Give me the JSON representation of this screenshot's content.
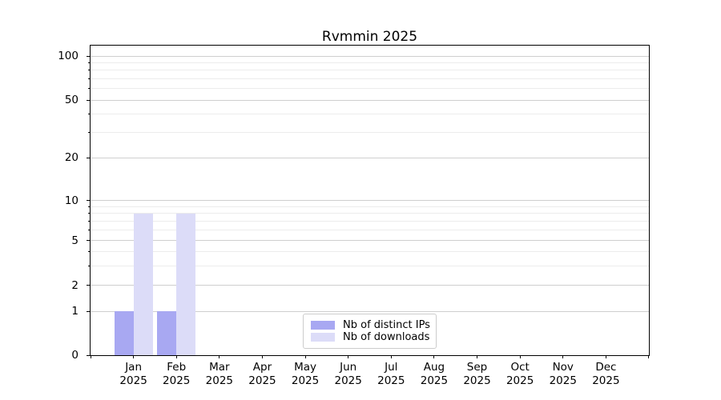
{
  "figure": {
    "background": "#ffffff"
  },
  "chart_data": {
    "type": "bar",
    "title": "Rvmmin 2025",
    "categories": [
      "Jan 2025",
      "Feb 2025",
      "Mar 2025",
      "Apr 2025",
      "May 2025",
      "Jun 2025",
      "Jul 2025",
      "Aug 2025",
      "Sep 2025",
      "Oct 2025",
      "Nov 2025",
      "Dec 2025"
    ],
    "series": [
      {
        "name": "Nb of distinct IPs",
        "color": "#a8a8f2",
        "values": [
          1,
          1,
          0,
          0,
          0,
          0,
          0,
          0,
          0,
          0,
          0,
          0
        ]
      },
      {
        "name": "Nb of downloads",
        "color": "#dcdcf8",
        "values": [
          8,
          8,
          0,
          0,
          0,
          0,
          0,
          0,
          0,
          0,
          0,
          0
        ]
      }
    ],
    "yscale": "symlog",
    "ylim": [
      0,
      118
    ],
    "y_major_ticks": [
      0,
      1,
      2,
      5,
      10,
      20,
      50,
      100
    ],
    "y_minor_ticks": [
      3,
      4,
      6,
      7,
      8,
      9,
      30,
      40,
      60,
      70,
      80,
      90
    ],
    "xlabel": "",
    "ylabel": "",
    "grid": "horizontal",
    "legend_position": "lower center"
  },
  "colors": {
    "axis": "#000000",
    "grid_major": "#cfcfcf",
    "grid_minor": "#ececec",
    "legend_border": "#cccccc",
    "text": "#000000"
  }
}
